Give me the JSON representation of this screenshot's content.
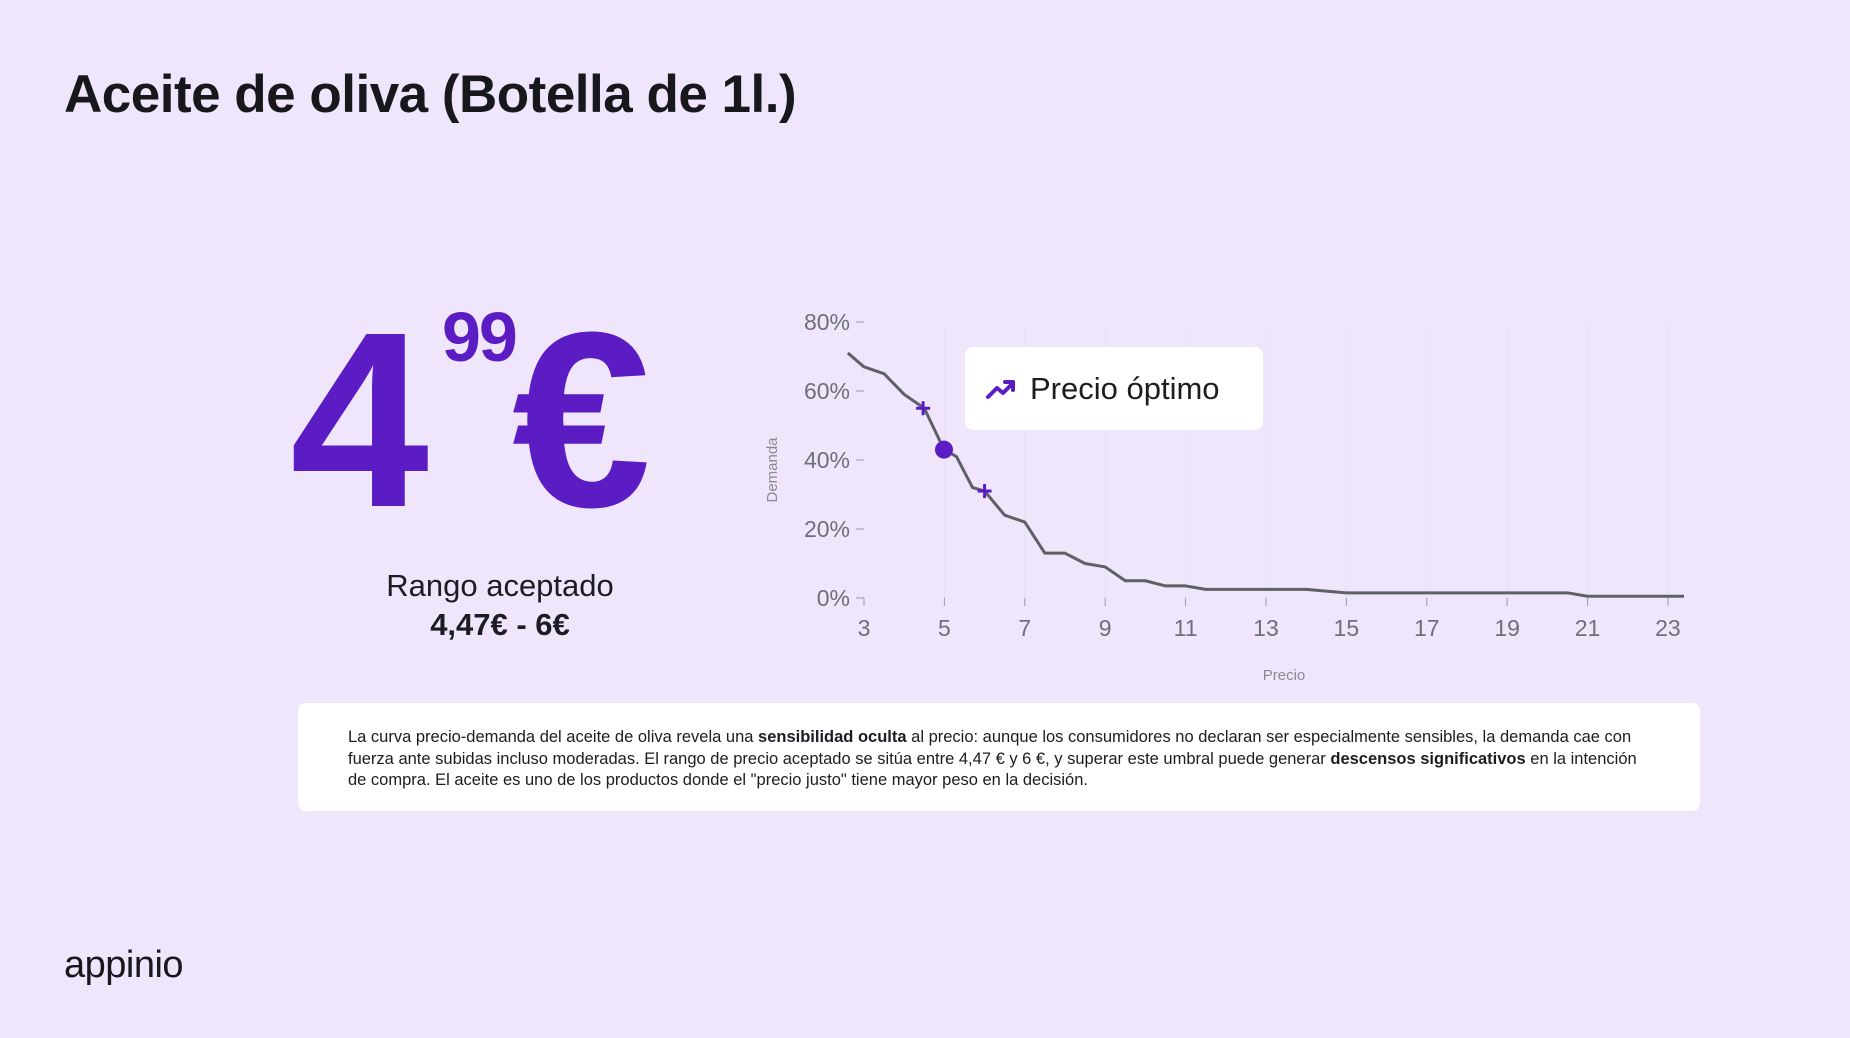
{
  "title": "Aceite de oliva (Botella de 1l.)",
  "price": {
    "integer": "4",
    "decimal": "99",
    "currency": "€"
  },
  "range": {
    "label": "Rango aceptado",
    "value": "4,47€ - 6€"
  },
  "callout": {
    "label": "Precio óptimo",
    "icon": "trending-up-icon"
  },
  "description": {
    "p1": "La curva precio-demanda del aceite de oliva revela una ",
    "b1": "sensibilidad oculta",
    "p2": " al precio: aunque los consumidores no declaran ser especialmente sensibles, la demanda cae con fuerza ante subidas incluso moderadas. El rango de precio aceptado se sitúa entre 4,47 € y 6 €, y superar este umbral puede generar ",
    "b2": "descensos significativos",
    "p3": " en la intención de compra. El aceite es uno de los productos donde el \"precio justo\" tiene mayor peso en la decisión."
  },
  "logo": "appinio",
  "colors": {
    "accent": "#5B1CC4",
    "background": "#EFE6FC",
    "line": "#5f5f68",
    "grid": "#e6e2ee"
  },
  "chart_data": {
    "type": "line",
    "xlabel": "Precio",
    "ylabel": "Demanda",
    "xlim": [
      3,
      23.4
    ],
    "ylim": [
      0,
      80
    ],
    "xticks": [
      "3",
      "5",
      "7",
      "9",
      "11",
      "13",
      "15",
      "17",
      "19",
      "21",
      "23"
    ],
    "yticks": [
      "0%",
      "20%",
      "40%",
      "60%",
      "80%"
    ],
    "grid": true,
    "series": [
      {
        "x": [
          2.6,
          3.0,
          3.5,
          4.0,
          4.5,
          4.99,
          5.3,
          5.7,
          6.0,
          6.5,
          7.0,
          7.5,
          8.0,
          8.5,
          9.0,
          9.5,
          10.0,
          10.5,
          11.0,
          11.5,
          12.0,
          13.0,
          14.0,
          15.0,
          16.0,
          17.0,
          18.0,
          19.0,
          20.0,
          20.5,
          21.0,
          22.0,
          23.0,
          23.4
        ],
        "y": [
          71,
          67,
          65,
          59,
          55,
          43,
          41,
          32,
          31,
          24,
          22,
          13,
          13,
          10,
          9,
          5,
          5,
          3.5,
          3.5,
          2.5,
          2.5,
          2.5,
          2.5,
          1.5,
          1.5,
          1.5,
          1.5,
          1.5,
          1.5,
          1.5,
          0.5,
          0.5,
          0.5,
          0.5
        ]
      }
    ],
    "markers": [
      {
        "type": "cross",
        "x": 4.47,
        "y": 55
      },
      {
        "type": "dot",
        "x": 4.99,
        "y": 43
      },
      {
        "type": "cross",
        "x": 6.0,
        "y": 31
      }
    ]
  }
}
